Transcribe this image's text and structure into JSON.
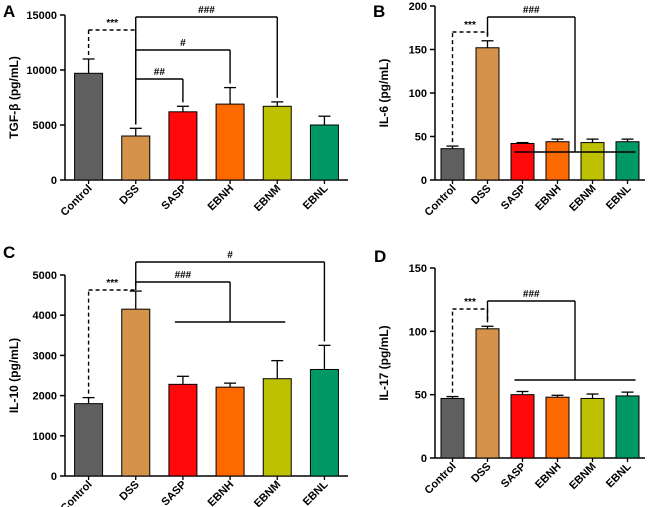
{
  "colors": {
    "Control": "#5f5f5f",
    "DSS": "#d4924a",
    "SASP": "#ff0a0a",
    "EBNH": "#ff6a00",
    "EBNM": "#bdc100",
    "EBNL": "#009966"
  },
  "chart_data": [
    {
      "panel": "A",
      "type": "bar",
      "ylabel": "TGF-β (pg/mL)",
      "categories": [
        "Control",
        "DSS",
        "SASP",
        "EBNH",
        "EBNM",
        "EBNL"
      ],
      "values": [
        9700,
        4000,
        6200,
        6900,
        6700,
        5000
      ],
      "errors": [
        1300,
        700,
        500,
        1500,
        400,
        800
      ],
      "ylim": [
        0,
        15000
      ],
      "yticks": [
        0,
        5000,
        10000,
        15000
      ],
      "annotations": [
        {
          "label": "***",
          "style": "dashed",
          "from": 0,
          "to": 1
        },
        {
          "label": "##",
          "style": "solid",
          "from": 1,
          "to": 2
        },
        {
          "label": "#",
          "style": "solid",
          "from": 1,
          "to": 3
        },
        {
          "label": "###",
          "style": "solid",
          "from": 1,
          "to": 4
        }
      ]
    },
    {
      "panel": "B",
      "type": "bar",
      "ylabel": "IL-6 (pg/mL)",
      "categories": [
        "Control",
        "DSS",
        "SASP",
        "EBNH",
        "EBNM",
        "EBNL"
      ],
      "values": [
        36,
        152,
        42,
        44,
        43,
        44
      ],
      "errors": [
        3,
        8,
        1,
        3,
        4,
        3
      ],
      "ylim": [
        0,
        200
      ],
      "yticks": [
        0,
        50,
        100,
        150,
        200
      ],
      "annotations": [
        {
          "label": "***",
          "style": "dashed",
          "from": 0,
          "to": 1
        },
        {
          "label": "###",
          "style": "solid",
          "from": 1,
          "to": [
            2,
            3,
            4,
            5
          ]
        }
      ]
    },
    {
      "panel": "C",
      "type": "bar",
      "ylabel": "IL-10 (pg/mL)",
      "categories": [
        "Control",
        "DSS",
        "SASP",
        "EBNH",
        "EBNM",
        "EBNL"
      ],
      "values": [
        1800,
        4150,
        2280,
        2210,
        2420,
        2650
      ],
      "errors": [
        150,
        450,
        200,
        100,
        450,
        600
      ],
      "ylim": [
        0,
        5000
      ],
      "yticks": [
        0,
        1000,
        2000,
        3000,
        4000,
        5000
      ],
      "annotations": [
        {
          "label": "***",
          "style": "dashed",
          "from": 0,
          "to": 1
        },
        {
          "label": "###",
          "style": "solid",
          "from": 1,
          "to": [
            2,
            3,
            4
          ]
        },
        {
          "label": "#",
          "style": "solid",
          "from": 1,
          "to": 5
        }
      ]
    },
    {
      "panel": "D",
      "type": "bar",
      "ylabel": "IL-17 (pg/mL)",
      "categories": [
        "Control",
        "DSS",
        "SASP",
        "EBNH",
        "EBNM",
        "EBNL"
      ],
      "values": [
        47,
        102,
        50,
        48,
        47,
        49
      ],
      "errors": [
        1.5,
        2,
        2.5,
        1.5,
        3.5,
        3
      ],
      "ylim": [
        0,
        150
      ],
      "yticks": [
        0,
        50,
        100,
        150
      ],
      "annotations": [
        {
          "label": "***",
          "style": "dashed",
          "from": 0,
          "to": 1
        },
        {
          "label": "###",
          "style": "solid",
          "from": 1,
          "to": [
            2,
            3,
            4,
            5
          ]
        }
      ]
    }
  ]
}
